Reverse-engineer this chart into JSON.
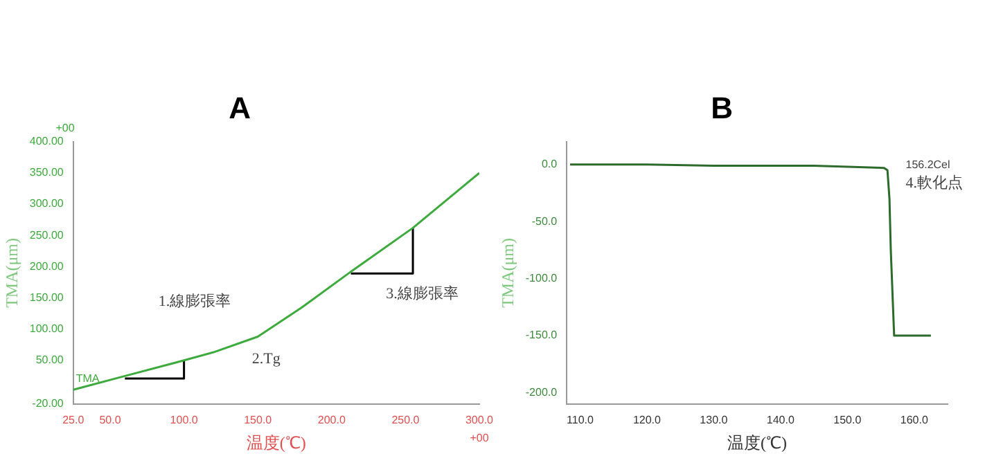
{
  "chart_data": [
    {
      "type": "line",
      "title": "A",
      "xlabel": "温度(℃)",
      "ylabel": "TMA(μm)",
      "grid": false,
      "legend": false,
      "marker": "none",
      "xlim": [
        25,
        300
      ],
      "ylim": [
        -20,
        400
      ],
      "xticks": [
        {
          "value": 25,
          "label": "25.0"
        },
        {
          "value": 50,
          "label": "50.0"
        },
        {
          "value": 100,
          "label": "100.0"
        },
        {
          "value": 150,
          "label": "150.0"
        },
        {
          "value": 200,
          "label": "200.0"
        },
        {
          "value": 250,
          "label": "250.0"
        },
        {
          "value": 300,
          "label": "300.0"
        }
      ],
      "yticks": [
        {
          "value": -20,
          "label": "-20.00"
        },
        {
          "value": 50,
          "label": "50.00"
        },
        {
          "value": 100,
          "label": "100.00"
        },
        {
          "value": 150,
          "label": "150.00"
        },
        {
          "value": 200,
          "label": "200.00"
        },
        {
          "value": 250,
          "label": "250.00"
        },
        {
          "value": 300,
          "label": "300.00"
        },
        {
          "value": 350,
          "label": "350.00"
        },
        {
          "value": 400,
          "label": "400.00"
        }
      ],
      "series": [
        {
          "color": "#3daa3d",
          "x": [
            25,
            60,
            100,
            120,
            150,
            180,
            213,
            255,
            300
          ],
          "values": [
            3,
            25,
            50,
            63,
            88,
            135,
            192,
            262,
            350
          ]
        },
        {
          "color": "#000000",
          "x": [
            60,
            100,
            100
          ],
          "values": [
            21,
            21,
            50
          ]
        },
        {
          "color": "#000000",
          "x": [
            213,
            255,
            255
          ],
          "values": [
            189,
            189,
            262
          ]
        }
      ],
      "annotations": [
        "+00",
        "+00",
        {
          "text": "TMA",
          "x": 25,
          "y": 3
        },
        "1.線膨張率",
        "2.Tg",
        "3.線膨張率"
      ]
    },
    {
      "type": "line",
      "title": "B",
      "xlabel": "温度(℃)",
      "ylabel": "TMA(μm)",
      "grid": false,
      "legend": false,
      "marker": "none",
      "xlim": [
        108,
        165
      ],
      "ylim": [
        -210,
        20
      ],
      "xticks": [
        {
          "value": 110,
          "label": "110.0"
        },
        {
          "value": 120,
          "label": "120.0"
        },
        {
          "value": 130,
          "label": "130.0"
        },
        {
          "value": 140,
          "label": "140.0"
        },
        {
          "value": 150,
          "label": "150.0"
        },
        {
          "value": 160,
          "label": "160.0"
        }
      ],
      "yticks": [
        {
          "value": 0,
          "label": "0.0"
        },
        {
          "value": -50,
          "label": "-50.0"
        },
        {
          "value": -100,
          "label": "-100.0"
        },
        {
          "value": -150,
          "label": "-150.0"
        },
        {
          "value": -200,
          "label": "-200.0"
        }
      ],
      "series": [
        {
          "color": "#2d6b2d",
          "x": [
            108.5,
            120,
            130,
            145,
            155.5,
            156,
            156.3,
            156.5,
            156.8,
            157,
            162.5
          ],
          "values": [
            0,
            0,
            -1,
            -1,
            -3,
            -5,
            -30,
            -75,
            -120,
            -150,
            -150
          ]
        }
      ],
      "annotations": [
        "156.2Cel",
        "4.軟化点"
      ]
    }
  ]
}
